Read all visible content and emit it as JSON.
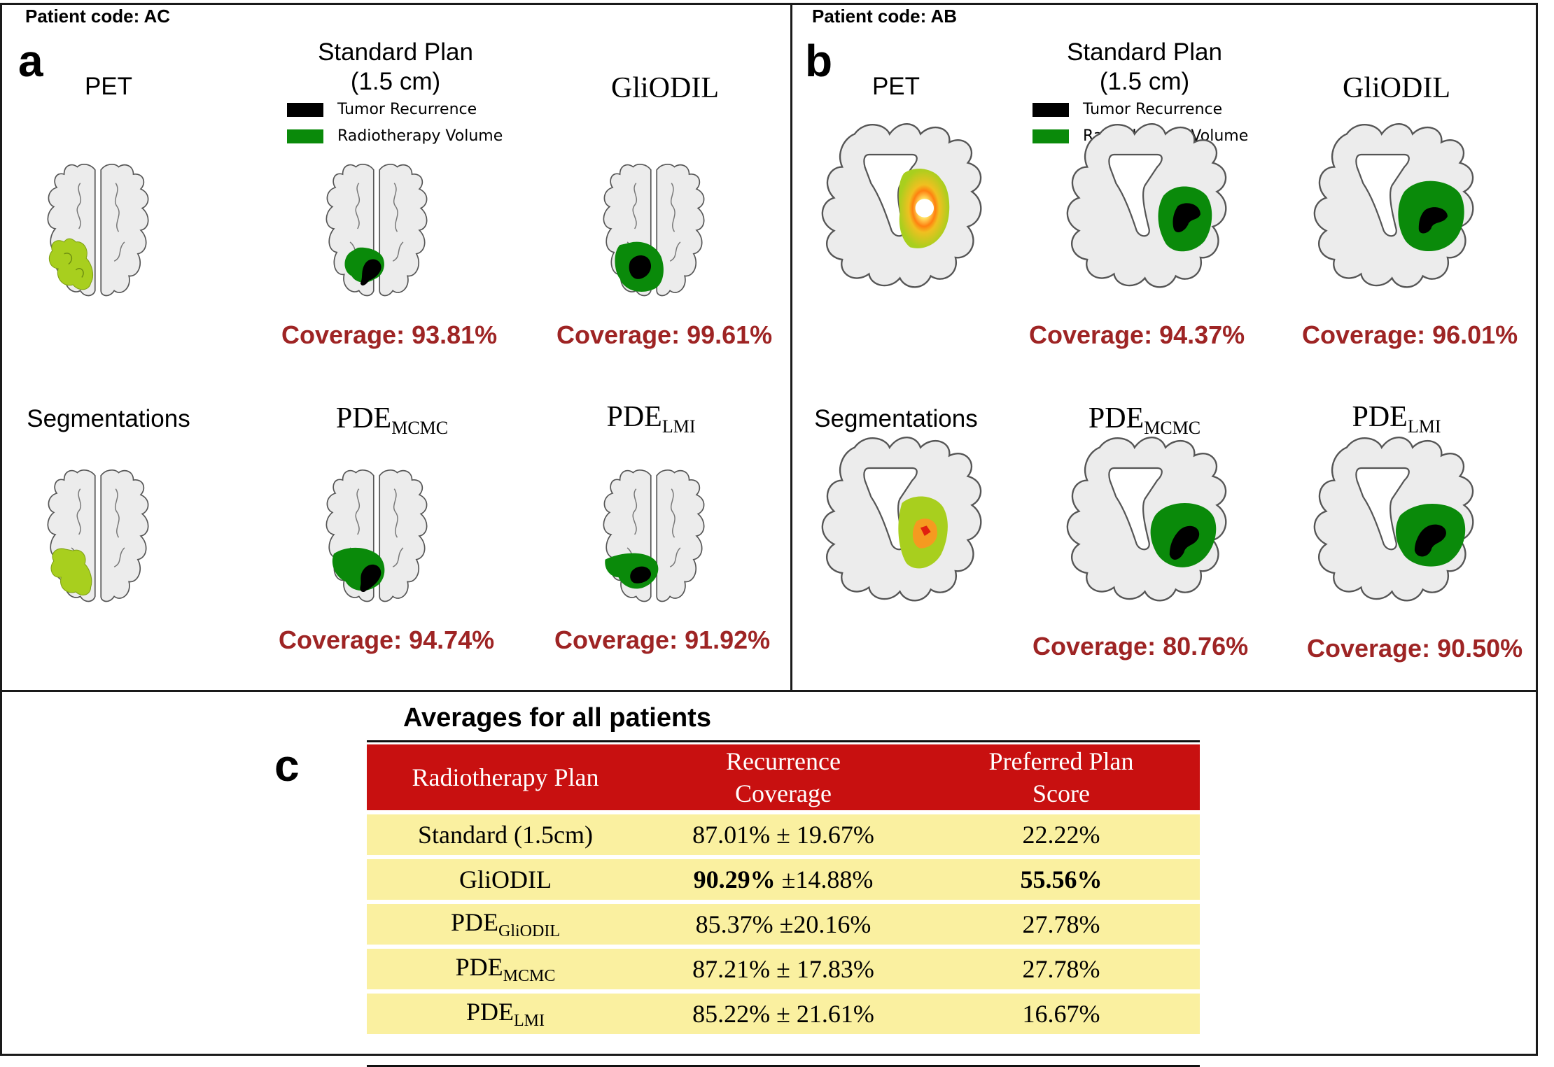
{
  "panel_a": {
    "patient_code": "Patient code: AC",
    "label": "a",
    "titles": {
      "pet": "PET",
      "standard_line1": "Standard Plan",
      "standard_line2": "(1.5 cm)",
      "gliodil": "GliODIL",
      "segmentations": "Segmentations",
      "pde_mcmc_base": "PDE",
      "pde_mcmc_sub": "MCMC",
      "pde_lmi_base": "PDE",
      "pde_lmi_sub": "LMI"
    },
    "coverage": {
      "standard": "Coverage: 93.81%",
      "gliodil": "Coverage: 99.61%",
      "pde_mcmc": "Coverage: 94.74%",
      "pde_lmi": "Coverage: 91.92%"
    }
  },
  "panel_b": {
    "patient_code": "Patient code: AB",
    "label": "b",
    "titles": {
      "pet": "PET",
      "standard_line1": "Standard Plan",
      "standard_line2": "(1.5 cm)",
      "gliodil": "GliODIL",
      "segmentations": "Segmentations",
      "pde_mcmc_base": "PDE",
      "pde_mcmc_sub": "MCMC",
      "pde_lmi_base": "PDE",
      "pde_lmi_sub": "LMI"
    },
    "coverage": {
      "standard": "Coverage: 94.37%",
      "gliodil": "Coverage: 96.01%",
      "pde_mcmc": "Coverage: 80.76%",
      "pde_lmi": "Coverage: 90.50%"
    }
  },
  "legend": {
    "tumor": "Tumor Recurrence",
    "radio": "Radiotherapy Volume",
    "tumor_color": "#000000",
    "radio_color": "#0a8a0a"
  },
  "panel_c": {
    "label": "c",
    "title": "Averages for all patients",
    "headers": {
      "plan": "Radiotherapy Plan",
      "coverage_l1": "Recurrence",
      "coverage_l2": "Coverage",
      "score_l1": "Preferred Plan",
      "score_l2": "Score"
    },
    "rows": [
      {
        "plan": "Standard (1.5cm)",
        "plan_sub": "",
        "cov_val": "87.01%",
        "cov_err": " ± 19.67%",
        "score": "22.22%"
      },
      {
        "plan": "GliODIL",
        "plan_sub": "",
        "cov_val": "90.29%",
        "cov_err": " ±14.88%",
        "score": "55.56%"
      },
      {
        "plan": "PDE",
        "plan_sub": "GliODIL",
        "cov_val": "85.37%",
        "cov_err": " ±20.16%",
        "score": "27.78%"
      },
      {
        "plan": "PDE",
        "plan_sub": "MCMC",
        "cov_val": "87.21%",
        "cov_err": " ± 17.83%",
        "score": "27.78%"
      },
      {
        "plan": "PDE",
        "plan_sub": "LMI",
        "cov_val": "85.22%",
        "cov_err": " ± 21.61%",
        "score": "16.67%"
      }
    ]
  },
  "colors": {
    "coverage_text": "#9e2424",
    "header_bg": "#c81010",
    "row_bg": "#faf0a0",
    "brain_fill": "#ececec",
    "pet_green": "#a8cf1e",
    "plan_green": "#0a8a0a"
  }
}
